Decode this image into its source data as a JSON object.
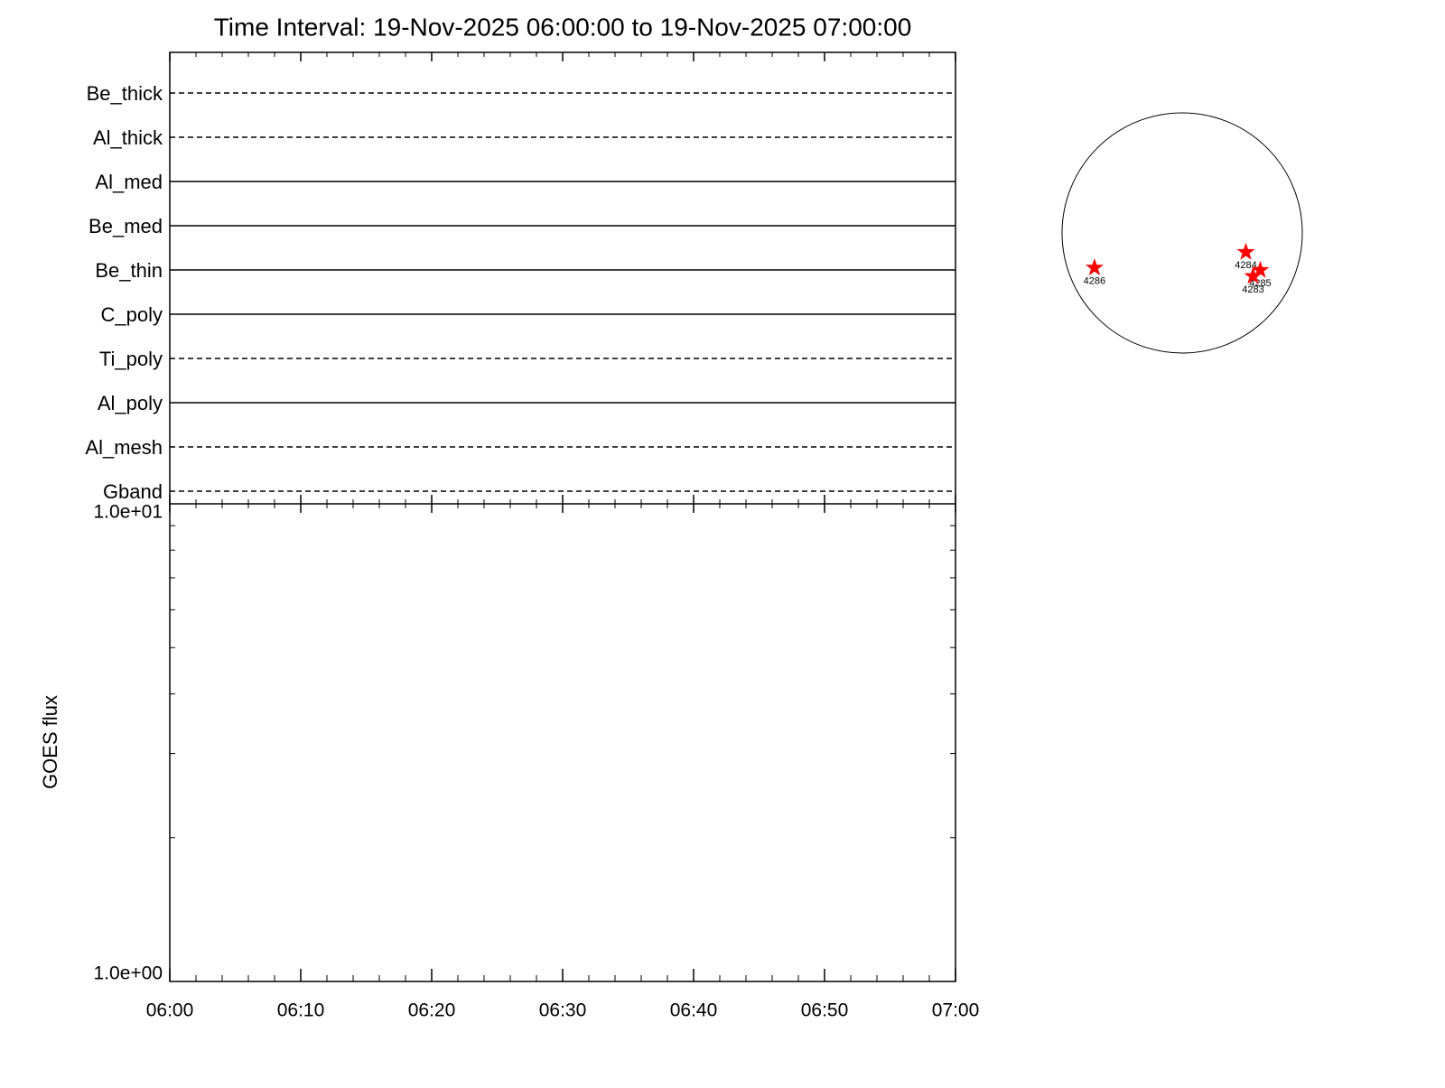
{
  "chart_data": [
    {
      "type": "timeline",
      "title": "Time Interval: 19-Nov-2025 06:00:00 to 19-Nov-2025 07:00:00",
      "categories": [
        "Be_thick",
        "Al_thick",
        "Al_med",
        "Be_med",
        "Be_thin",
        "C_poly",
        "Ti_poly",
        "Al_poly",
        "Al_mesh",
        "Gband"
      ],
      "styles": [
        "dashed",
        "dashed",
        "solid",
        "solid",
        "solid",
        "solid",
        "dashed",
        "solid",
        "dashed",
        "dashed"
      ]
    },
    {
      "type": "line",
      "ylabel": "GOES flux",
      "log_y": true,
      "ylim": [
        1,
        10
      ],
      "yticks": [
        {
          "value": 1,
          "label": "1.0e+00"
        },
        {
          "value": 10,
          "label": "1.0e+01"
        }
      ],
      "xlim": [
        0,
        60
      ],
      "xticks": [
        {
          "value": 0,
          "label": "06:00"
        },
        {
          "value": 10,
          "label": "06:10"
        },
        {
          "value": 20,
          "label": "06:20"
        },
        {
          "value": 30,
          "label": "06:30"
        },
        {
          "value": 40,
          "label": "06:40"
        },
        {
          "value": 50,
          "label": "06:50"
        },
        {
          "value": 60,
          "label": "07:00"
        }
      ],
      "series": []
    },
    {
      "type": "scatter",
      "marker": "star",
      "color": "#ff0000",
      "xlim": [
        -1,
        1
      ],
      "ylim": [
        -1,
        1
      ],
      "x": [
        0.53,
        0.65,
        0.59,
        -0.73
      ],
      "y": [
        -0.16,
        -0.31,
        -0.36,
        -0.29
      ],
      "labels": [
        "4284",
        "4285",
        "4283",
        "4286"
      ]
    }
  ]
}
